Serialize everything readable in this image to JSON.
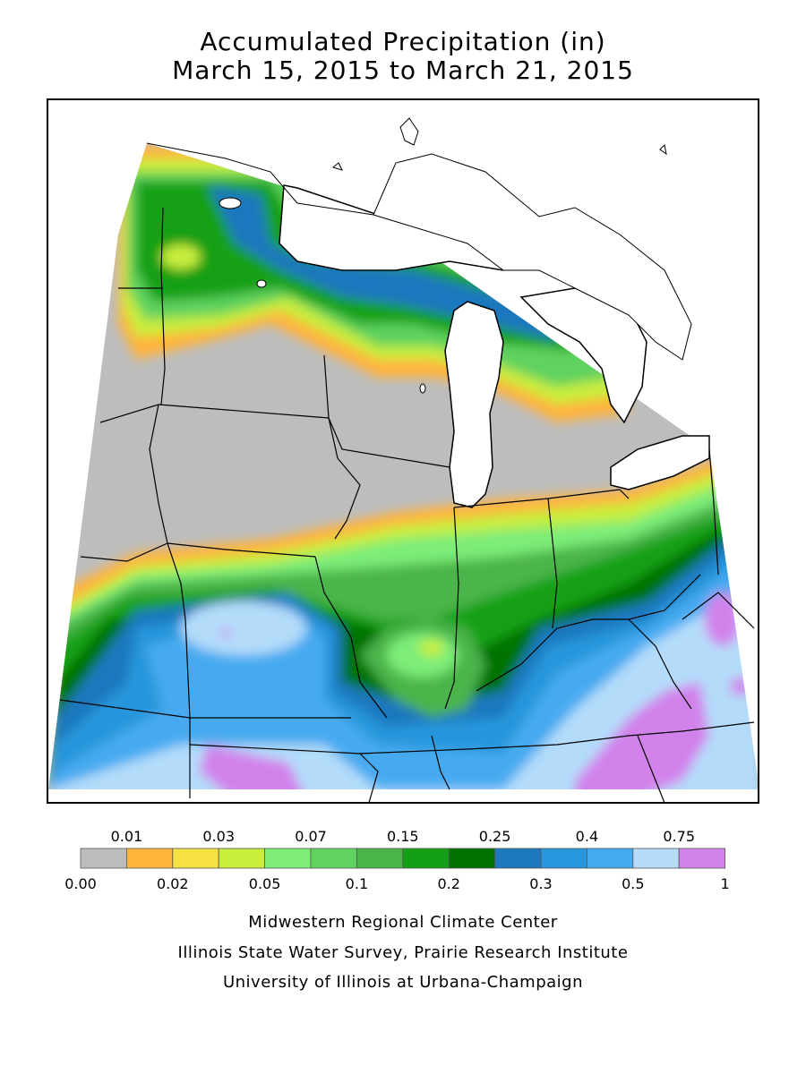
{
  "title": {
    "line1": "Accumulated Precipitation (in)",
    "line2": "March 15, 2015 to March 21, 2015"
  },
  "legend": {
    "upper_labels": [
      "0.01",
      "0.03",
      "0.07",
      "0.15",
      "0.25",
      "0.4",
      "0.75"
    ],
    "lower_labels": [
      "0.00",
      "0.02",
      "0.05",
      "0.1",
      "0.2",
      "0.3",
      "0.5",
      "1"
    ],
    "colors": [
      "#bdbdbd",
      "#ffb43c",
      "#f5e141",
      "#c8ed3c",
      "#7ded78",
      "#5fd25f",
      "#4bb44b",
      "#14a014",
      "#007300",
      "#1e78be",
      "#2896dc",
      "#46aaf0",
      "#b4dcfa",
      "#d282eb"
    ]
  },
  "credits": {
    "line1": "Midwestern Regional Climate Center",
    "line2": "Illinois State Water Survey, Prairie Research Institute",
    "line3": "University of Illinois at Urbana-Champaign"
  }
}
